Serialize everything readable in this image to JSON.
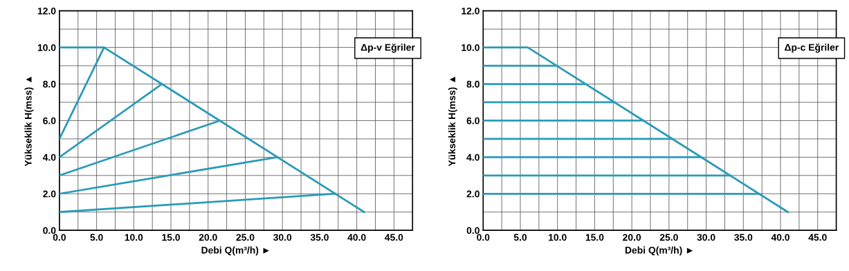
{
  "chart_data": [
    {
      "type": "line",
      "xlabel": "Debi Q(m³/h) ►",
      "ylabel": "Yükseklik H(mss) ▲",
      "annotations": [
        "Δp-v Eğriler"
      ],
      "xlim": [
        0,
        47.5
      ],
      "ylim": [
        0,
        12
      ],
      "xticks": [
        {
          "value": 0,
          "label": "0.0"
        },
        {
          "value": 2.5,
          "label": null
        },
        {
          "value": 5,
          "label": "5.0"
        },
        {
          "value": 7.5,
          "label": null
        },
        {
          "value": 10,
          "label": "10.0"
        },
        {
          "value": 12.5,
          "label": null
        },
        {
          "value": 15,
          "label": "15.0"
        },
        {
          "value": 17.5,
          "label": null
        },
        {
          "value": 20,
          "label": "20.0"
        },
        {
          "value": 22.5,
          "label": null
        },
        {
          "value": 25,
          "label": "25.0"
        },
        {
          "value": 27.5,
          "label": null
        },
        {
          "value": 30,
          "label": "30.0"
        },
        {
          "value": 32.5,
          "label": null
        },
        {
          "value": 35,
          "label": "35.0"
        },
        {
          "value": 37.5,
          "label": null
        },
        {
          "value": 40,
          "label": "40.0"
        },
        {
          "value": 42.5,
          "label": null
        },
        {
          "value": 45,
          "label": "45.0"
        }
      ],
      "yticks": [
        {
          "value": 0,
          "label": "0.0"
        },
        {
          "value": 1,
          "label": null
        },
        {
          "value": 2,
          "label": "2.0"
        },
        {
          "value": 3,
          "label": null
        },
        {
          "value": 4,
          "label": "4.0"
        },
        {
          "value": 5,
          "label": null
        },
        {
          "value": 6,
          "label": "6.0"
        },
        {
          "value": 7,
          "label": null
        },
        {
          "value": 8,
          "label": "8.0"
        },
        {
          "value": 9,
          "label": null
        },
        {
          "value": 10,
          "label": "10.0"
        },
        {
          "value": 11,
          "label": null
        },
        {
          "value": 12,
          "label": "12.0"
        }
      ],
      "grid": true,
      "legend": false,
      "marker": "none",
      "line_style": "solid",
      "series": [
        {
          "color": "#2a9bb8",
          "x": [
            0,
            6,
            41
          ],
          "values": [
            10,
            10,
            1
          ]
        },
        {
          "color": "#2a9bb8",
          "x": [
            0,
            6
          ],
          "values": [
            5,
            10
          ]
        },
        {
          "color": "#2a9bb8",
          "x": [
            0,
            13.8
          ],
          "values": [
            4,
            8
          ]
        },
        {
          "color": "#2a9bb8",
          "x": [
            0,
            21.6
          ],
          "values": [
            3,
            6
          ]
        },
        {
          "color": "#2a9bb8",
          "x": [
            0,
            29.3
          ],
          "values": [
            2,
            4
          ]
        },
        {
          "color": "#2a9bb8",
          "x": [
            0,
            37.1
          ],
          "values": [
            1,
            2
          ]
        }
      ]
    },
    {
      "type": "line",
      "xlabel": "Debi Q(m³/h) ►",
      "ylabel": "Yükseklik H(mss) ▲",
      "annotations": [
        "Δp-c Eğriler"
      ],
      "xlim": [
        0,
        47.5
      ],
      "ylim": [
        0,
        12
      ],
      "xticks": [
        {
          "value": 0,
          "label": "0.0"
        },
        {
          "value": 2.5,
          "label": null
        },
        {
          "value": 5,
          "label": "5.0"
        },
        {
          "value": 7.5,
          "label": null
        },
        {
          "value": 10,
          "label": "10.0"
        },
        {
          "value": 12.5,
          "label": null
        },
        {
          "value": 15,
          "label": "15.0"
        },
        {
          "value": 17.5,
          "label": null
        },
        {
          "value": 20,
          "label": "20.0"
        },
        {
          "value": 22.5,
          "label": null
        },
        {
          "value": 25,
          "label": "25.0"
        },
        {
          "value": 27.5,
          "label": null
        },
        {
          "value": 30,
          "label": "30.0"
        },
        {
          "value": 32.5,
          "label": null
        },
        {
          "value": 35,
          "label": "35.0"
        },
        {
          "value": 37.5,
          "label": null
        },
        {
          "value": 40,
          "label": "40.0"
        },
        {
          "value": 42.5,
          "label": null
        },
        {
          "value": 45,
          "label": "45.0"
        }
      ],
      "yticks": [
        {
          "value": 0,
          "label": "0.0"
        },
        {
          "value": 1,
          "label": null
        },
        {
          "value": 2,
          "label": "2.0"
        },
        {
          "value": 3,
          "label": null
        },
        {
          "value": 4,
          "label": "4.0"
        },
        {
          "value": 5,
          "label": null
        },
        {
          "value": 6,
          "label": "6.0"
        },
        {
          "value": 7,
          "label": null
        },
        {
          "value": 8,
          "label": "8.0"
        },
        {
          "value": 9,
          "label": null
        },
        {
          "value": 10,
          "label": "10.0"
        },
        {
          "value": 11,
          "label": null
        },
        {
          "value": 12,
          "label": "12.0"
        }
      ],
      "grid": true,
      "legend": false,
      "marker": "none",
      "line_style": "solid",
      "series": [
        {
          "color": "#2a9bb8",
          "x": [
            0,
            6,
            41
          ],
          "values": [
            10,
            10,
            1
          ]
        },
        {
          "color": "#2a9bb8",
          "x": [
            0,
            9.9
          ],
          "values": [
            9,
            9
          ]
        },
        {
          "color": "#2a9bb8",
          "x": [
            0,
            13.8
          ],
          "values": [
            8,
            8
          ]
        },
        {
          "color": "#2a9bb8",
          "x": [
            0,
            17.7
          ],
          "values": [
            7,
            7
          ]
        },
        {
          "color": "#2a9bb8",
          "x": [
            0,
            21.6
          ],
          "values": [
            6,
            6
          ]
        },
        {
          "color": "#2a9bb8",
          "x": [
            0,
            25.4
          ],
          "values": [
            5,
            5
          ]
        },
        {
          "color": "#2a9bb8",
          "x": [
            0,
            29.3
          ],
          "values": [
            4,
            4
          ]
        },
        {
          "color": "#2a9bb8",
          "x": [
            0,
            33.2
          ],
          "values": [
            3,
            3
          ]
        },
        {
          "color": "#2a9bb8",
          "x": [
            0,
            37.1
          ],
          "values": [
            2,
            2
          ]
        }
      ]
    }
  ]
}
